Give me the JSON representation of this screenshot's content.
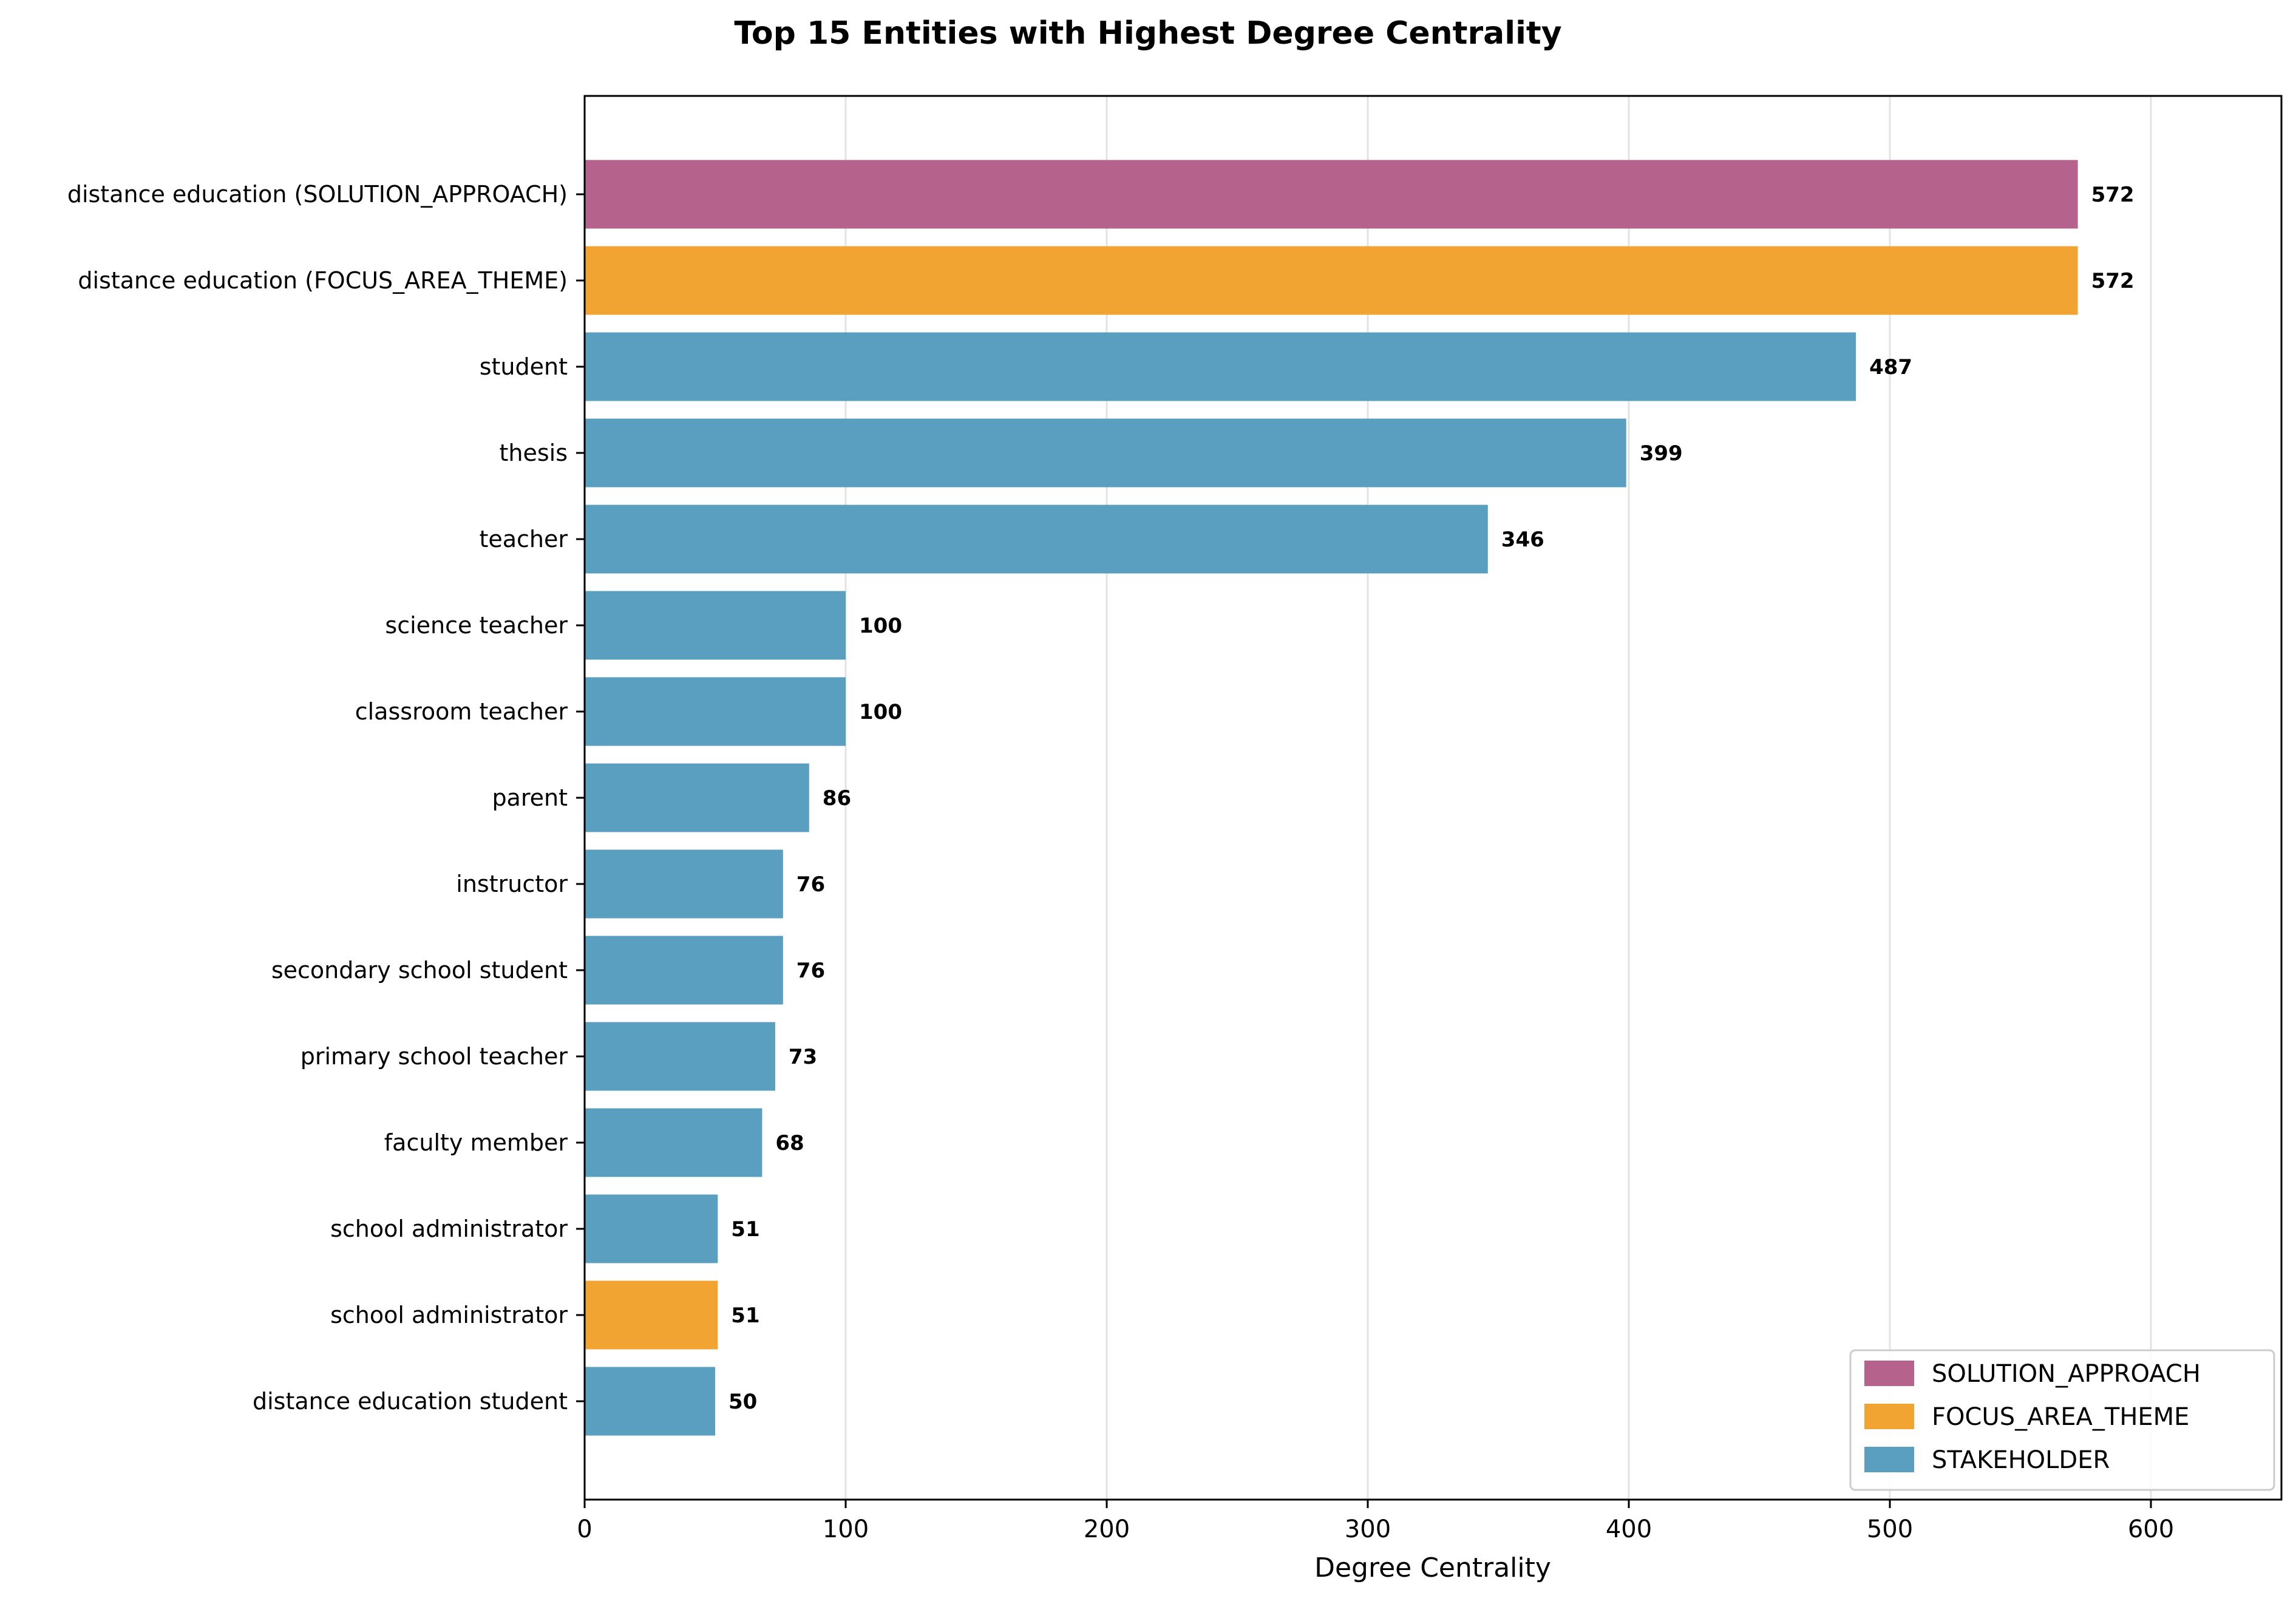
{
  "chart_data": {
    "type": "bar",
    "orientation": "horizontal",
    "title": "Top 15 Entities with Highest Degree Centrality",
    "xlabel": "Degree Centrality",
    "ylabel": "",
    "xlim": [
      0,
      650
    ],
    "xticks": [
      0,
      100,
      200,
      300,
      400,
      500,
      600
    ],
    "grid": "vertical",
    "legend_position": "bottom-right",
    "legend": [
      {
        "name": "SOLUTION_APPROACH",
        "color": "#b5638c"
      },
      {
        "name": "FOCUS_AREA_THEME",
        "color": "#f2a433"
      },
      {
        "name": "STAKEHOLDER",
        "color": "#5a9fbf"
      }
    ],
    "categories": [
      "distance education (SOLUTION_APPROACH)",
      "distance education (FOCUS_AREA_THEME)",
      "student",
      "thesis",
      "teacher",
      "science teacher",
      "classroom teacher",
      "parent",
      "instructor",
      "secondary school student",
      "primary school teacher",
      "faculty member",
      "school administrator",
      "school administrator",
      "distance education student"
    ],
    "values": [
      572,
      572,
      487,
      399,
      346,
      100,
      100,
      86,
      76,
      76,
      73,
      68,
      51,
      51,
      50
    ],
    "value_labels": [
      "572",
      "572",
      "487",
      "399",
      "346",
      "100",
      "100",
      "86",
      "76",
      "76",
      "73",
      "68",
      "51",
      "51",
      "50"
    ],
    "groups": [
      "SOLUTION_APPROACH",
      "FOCUS_AREA_THEME",
      "STAKEHOLDER",
      "STAKEHOLDER",
      "STAKEHOLDER",
      "STAKEHOLDER",
      "STAKEHOLDER",
      "STAKEHOLDER",
      "STAKEHOLDER",
      "STAKEHOLDER",
      "STAKEHOLDER",
      "STAKEHOLDER",
      "STAKEHOLDER",
      "FOCUS_AREA_THEME",
      "STAKEHOLDER"
    ]
  }
}
